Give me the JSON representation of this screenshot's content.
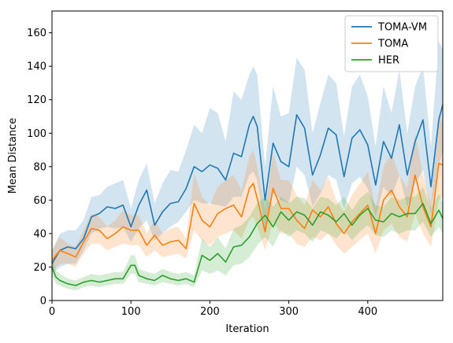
{
  "chart_data": {
    "type": "line",
    "xlabel": "Iteration",
    "ylabel": "Mean Distance",
    "xlim": [
      0,
      495
    ],
    "ylim": [
      0,
      173
    ],
    "xticks": [
      0,
      100,
      200,
      300,
      400
    ],
    "yticks": [
      0,
      20,
      40,
      60,
      80,
      100,
      120,
      140,
      160
    ],
    "legend_position": "top-right",
    "grid": false,
    "series": [
      {
        "name": "TOMA-VM",
        "color": "#1f77b4",
        "x": [
          0,
          10,
          20,
          30,
          40,
          50,
          60,
          70,
          80,
          90,
          100,
          110,
          120,
          130,
          140,
          150,
          160,
          170,
          180,
          190,
          200,
          210,
          220,
          230,
          240,
          250,
          255,
          260,
          270,
          280,
          290,
          300,
          310,
          320,
          330,
          340,
          350,
          360,
          370,
          380,
          390,
          400,
          410,
          420,
          430,
          440,
          450,
          460,
          470,
          480,
          490,
          495
        ],
        "y": [
          22,
          30,
          32,
          31,
          37,
          50,
          52,
          56,
          55,
          57,
          44,
          57,
          66,
          45,
          53,
          58,
          59,
          67,
          80,
          77,
          81,
          79,
          72,
          88,
          86,
          105,
          110,
          104,
          60,
          94,
          83,
          80,
          111,
          103,
          75,
          87,
          103,
          99,
          74,
          97,
          102,
          93,
          69,
          95,
          85,
          105,
          75,
          95,
          108,
          68,
          108,
          117
        ],
        "lower": [
          16,
          20,
          22,
          22,
          30,
          40,
          43,
          44,
          43,
          44,
          35,
          43,
          48,
          36,
          40,
          44,
          47,
          53,
          60,
          58,
          58,
          57,
          56,
          62,
          62,
          75,
          77,
          72,
          42,
          64,
          60,
          58,
          80,
          75,
          56,
          64,
          75,
          72,
          55,
          70,
          74,
          67,
          50,
          68,
          62,
          75,
          56,
          70,
          78,
          52,
          80,
          90
        ],
        "upper": [
          30,
          40,
          42,
          42,
          48,
          62,
          63,
          68,
          70,
          72,
          55,
          72,
          82,
          58,
          70,
          78,
          77,
          90,
          105,
          100,
          115,
          112,
          95,
          125,
          120,
          135,
          140,
          135,
          80,
          128,
          110,
          112,
          145,
          138,
          100,
          118,
          135,
          130,
          98,
          128,
          135,
          122,
          92,
          128,
          112,
          138,
          100,
          128,
          140,
          92,
          155,
          150
        ]
      },
      {
        "name": "TOMA",
        "color": "#ff7f0e",
        "x": [
          0,
          10,
          20,
          30,
          40,
          50,
          60,
          70,
          80,
          90,
          100,
          110,
          120,
          130,
          140,
          150,
          160,
          170,
          180,
          190,
          200,
          210,
          220,
          230,
          240,
          250,
          255,
          260,
          270,
          280,
          290,
          300,
          310,
          320,
          330,
          340,
          350,
          360,
          370,
          380,
          390,
          400,
          410,
          420,
          430,
          440,
          450,
          460,
          470,
          480,
          490,
          495
        ],
        "y": [
          24,
          30,
          28,
          26,
          35,
          43,
          42,
          37,
          40,
          44,
          42,
          42,
          33,
          39,
          33,
          35,
          36,
          31,
          58,
          48,
          44,
          52,
          55,
          57,
          50,
          67,
          70,
          61,
          41,
          67,
          55,
          55,
          48,
          43,
          54,
          50,
          56,
          46,
          40,
          47,
          52,
          57,
          40,
          60,
          66,
          56,
          50,
          75,
          56,
          44,
          82,
          81
        ],
        "lower": [
          18,
          22,
          22,
          20,
          28,
          34,
          34,
          30,
          32,
          34,
          33,
          33,
          26,
          30,
          26,
          27,
          28,
          25,
          42,
          36,
          33,
          38,
          40,
          42,
          37,
          48,
          50,
          44,
          30,
          47,
          40,
          40,
          34,
          32,
          38,
          36,
          40,
          33,
          28,
          32,
          36,
          40,
          28,
          42,
          46,
          38,
          35,
          52,
          40,
          32,
          60,
          62
        ],
        "upper": [
          30,
          38,
          34,
          32,
          42,
          52,
          50,
          44,
          48,
          54,
          51,
          51,
          40,
          48,
          40,
          43,
          44,
          37,
          76,
          62,
          57,
          68,
          72,
          75,
          66,
          86,
          90,
          80,
          54,
          88,
          72,
          72,
          63,
          57,
          72,
          66,
          74,
          60,
          53,
          63,
          70,
          77,
          55,
          80,
          88,
          75,
          67,
          100,
          75,
          58,
          112,
          105
        ]
      },
      {
        "name": "HER",
        "color": "#2ca02c",
        "x": [
          0,
          5,
          10,
          20,
          30,
          40,
          50,
          60,
          70,
          80,
          90,
          100,
          105,
          110,
          120,
          130,
          140,
          150,
          160,
          170,
          180,
          190,
          200,
          210,
          220,
          230,
          240,
          250,
          260,
          270,
          280,
          290,
          300,
          310,
          320,
          330,
          340,
          350,
          360,
          370,
          380,
          390,
          400,
          410,
          420,
          430,
          440,
          450,
          460,
          470,
          480,
          490,
          495
        ],
        "y": [
          20,
          14,
          12,
          10,
          9,
          11,
          12,
          11,
          12,
          13,
          13,
          21,
          21,
          15,
          13,
          12,
          15,
          13,
          12,
          13,
          11,
          27,
          24,
          28,
          23,
          32,
          33,
          38,
          46,
          51,
          44,
          53,
          48,
          53,
          51,
          45,
          53,
          51,
          47,
          52,
          45,
          51,
          55,
          48,
          47,
          52,
          50,
          52,
          52,
          58,
          46,
          54,
          49
        ],
        "lower": [
          15,
          10,
          9,
          7,
          6,
          8,
          9,
          8,
          9,
          10,
          10,
          16,
          16,
          11,
          10,
          9,
          11,
          10,
          9,
          10,
          8,
          18,
          16,
          18,
          15,
          21,
          22,
          26,
          33,
          38,
          32,
          42,
          38,
          42,
          40,
          35,
          42,
          40,
          37,
          42,
          36,
          41,
          45,
          39,
          38,
          42,
          40,
          42,
          42,
          47,
          38,
          44,
          40
        ],
        "upper": [
          26,
          18,
          16,
          13,
          12,
          14,
          16,
          15,
          16,
          17,
          17,
          27,
          27,
          19,
          17,
          16,
          19,
          17,
          16,
          17,
          15,
          37,
          32,
          38,
          31,
          43,
          45,
          50,
          58,
          62,
          56,
          62,
          58,
          62,
          61,
          55,
          62,
          61,
          57,
          62,
          54,
          61,
          65,
          57,
          56,
          62,
          60,
          62,
          62,
          68,
          55,
          64,
          58
        ]
      }
    ]
  }
}
